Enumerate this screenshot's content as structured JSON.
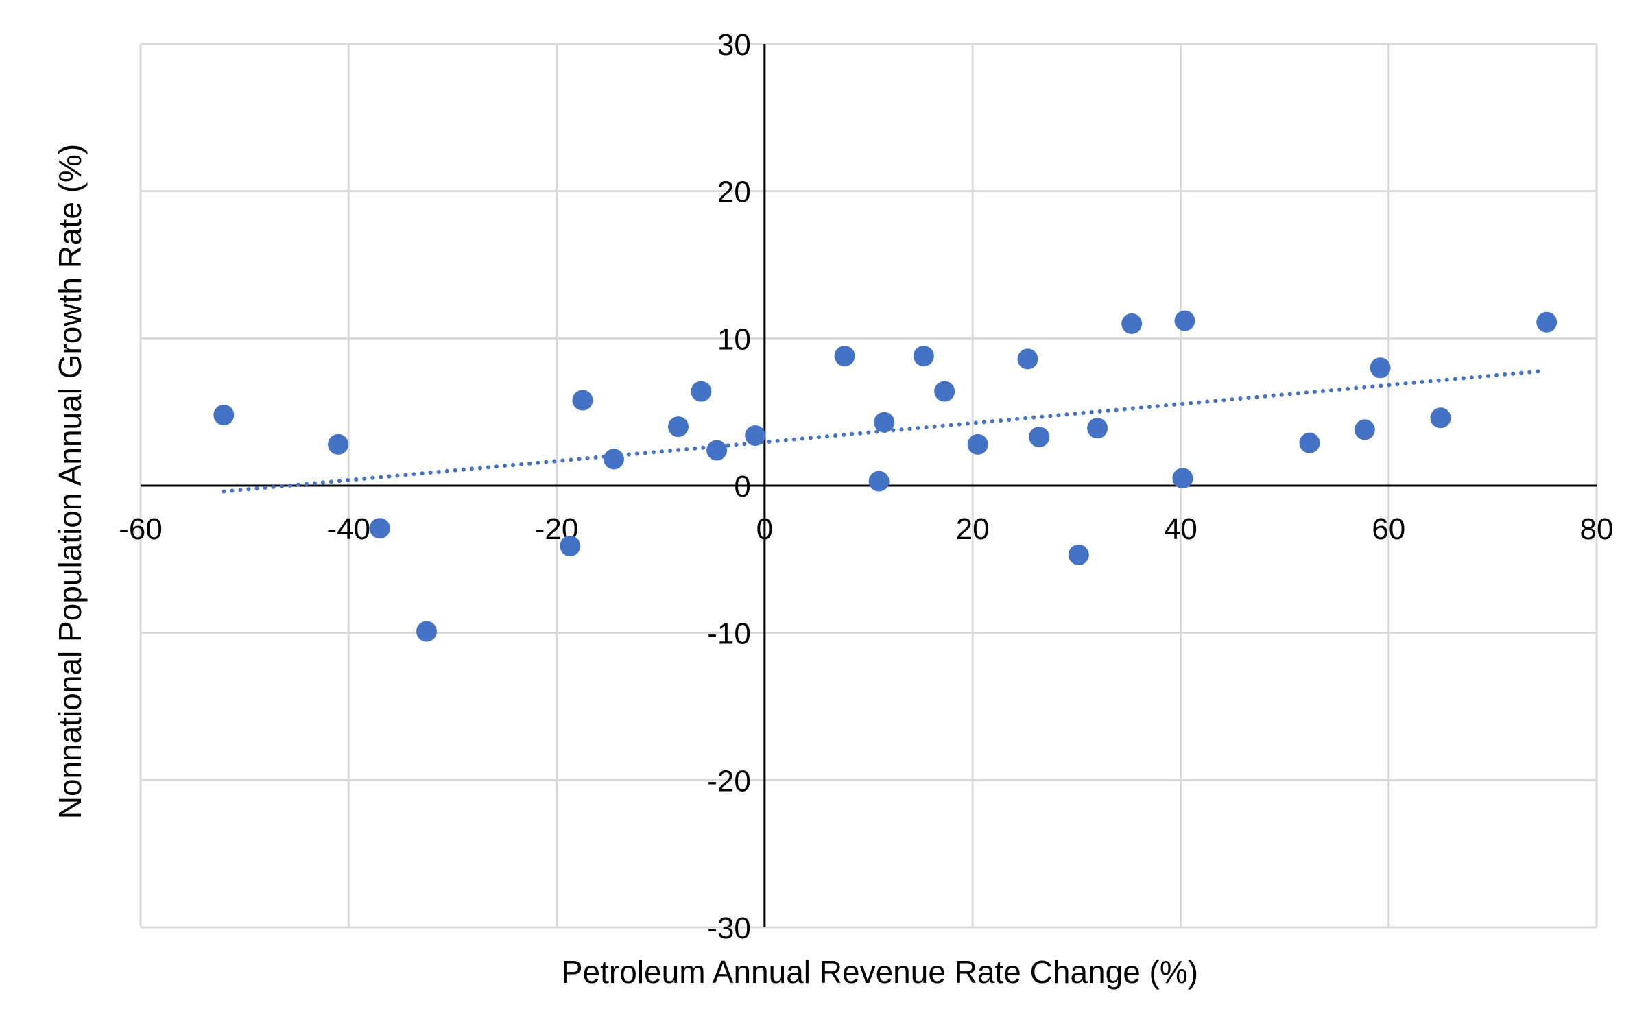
{
  "chart_data": {
    "type": "scatter",
    "title": "",
    "xlabel": "Petroleum Annual Revenue Rate Change (%)",
    "ylabel": "Nonnational Population Annual Growth Rate (%)",
    "xlim": [
      -60,
      80
    ],
    "ylim": [
      -30,
      30
    ],
    "x_ticks": [
      "-60",
      "-40",
      "-20",
      "0",
      "20",
      "40",
      "60",
      "80"
    ],
    "y_ticks": [
      "30",
      "20",
      "10",
      "0",
      "-10",
      "-20",
      "-30"
    ],
    "grid": true,
    "legend": "none",
    "series": [
      {
        "color": "#4472c4",
        "points": [
          [
            -52,
            4.8
          ],
          [
            -41,
            2.8
          ],
          [
            -37,
            -2.9
          ],
          [
            -32.5,
            -9.9
          ],
          [
            -18.7,
            -4.1
          ],
          [
            -17.5,
            5.8
          ],
          [
            -14.5,
            1.8
          ],
          [
            -8.3,
            4.0
          ],
          [
            -6.1,
            6.4
          ],
          [
            -4.6,
            2.4
          ],
          [
            -0.9,
            3.4
          ],
          [
            7.7,
            8.8
          ],
          [
            11.0,
            0.3
          ],
          [
            11.5,
            4.3
          ],
          [
            15.3,
            8.8
          ],
          [
            17.3,
            6.4
          ],
          [
            20.5,
            2.8
          ],
          [
            25.3,
            8.6
          ],
          [
            26.4,
            3.3
          ],
          [
            30.2,
            -4.7
          ],
          [
            32.0,
            3.9
          ],
          [
            35.3,
            11.0
          ],
          [
            40.2,
            0.5
          ],
          [
            40.4,
            11.2
          ],
          [
            52.4,
            2.9
          ],
          [
            57.7,
            3.8
          ],
          [
            59.2,
            8.0
          ],
          [
            65.0,
            4.6
          ],
          [
            75.2,
            11.1
          ]
        ]
      }
    ],
    "trendline": {
      "style": "dotted",
      "color": "#4472c4",
      "x": [
        -52,
        75
      ],
      "y": [
        -0.4,
        7.8
      ]
    }
  }
}
